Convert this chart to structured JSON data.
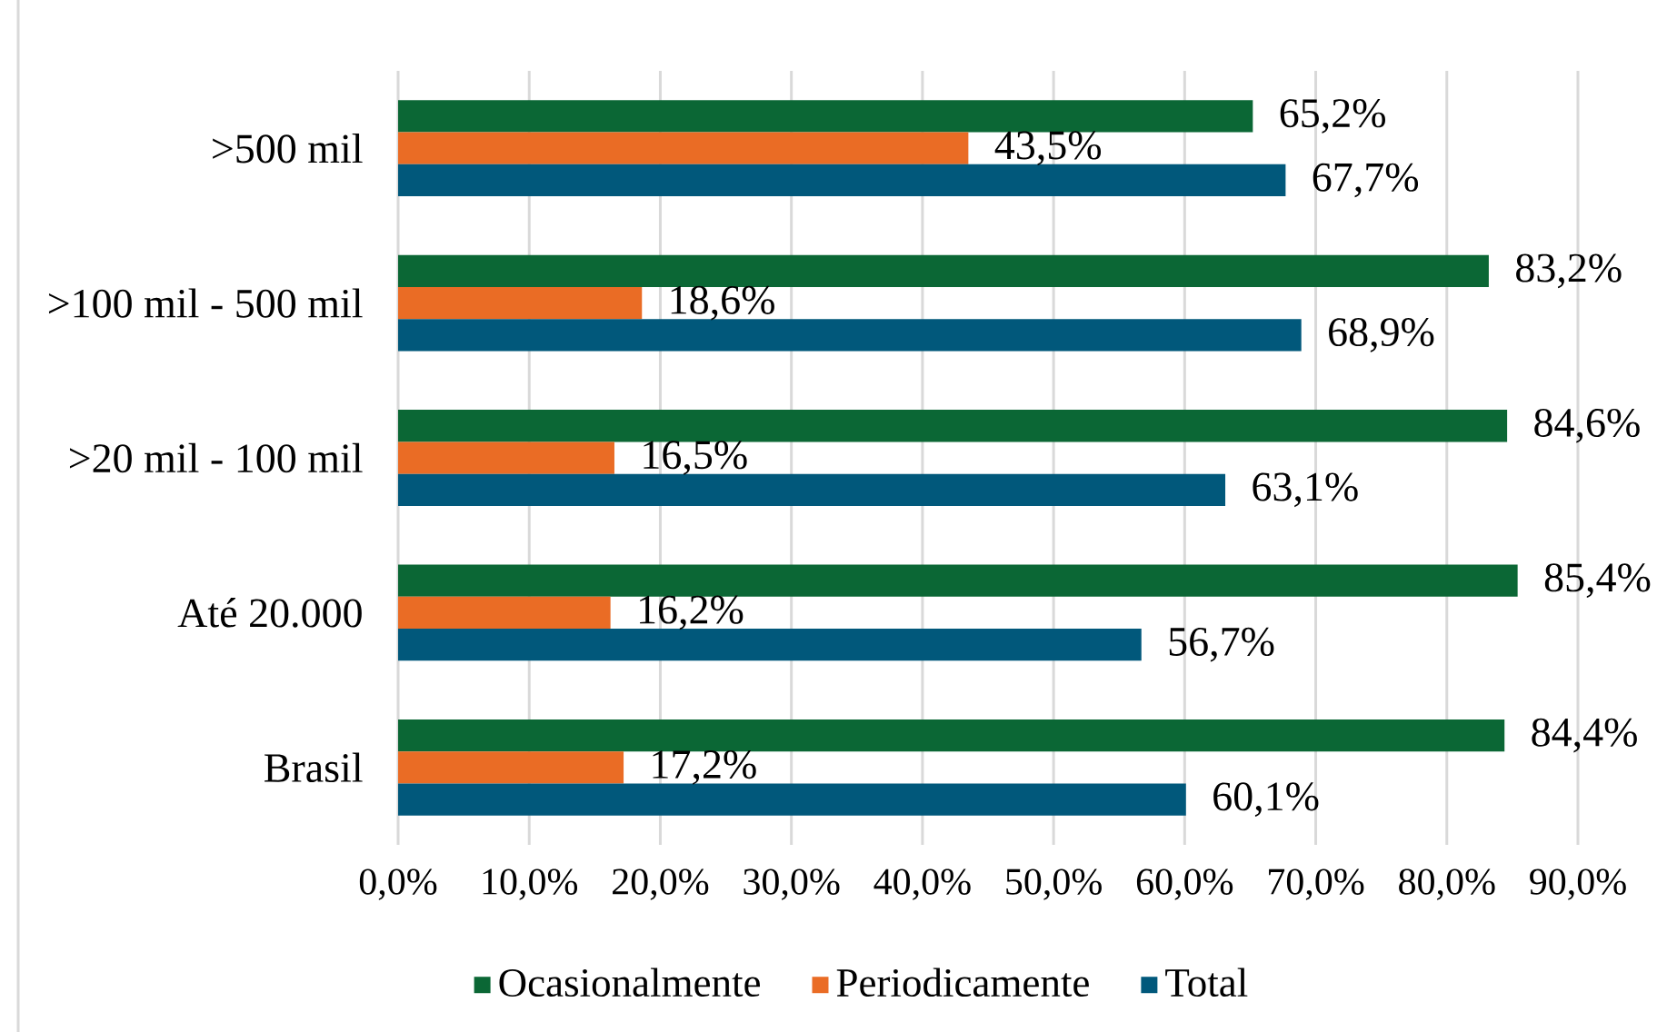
{
  "chart_data": {
    "type": "bar",
    "orientation": "horizontal",
    "categories": [
      ">500 mil",
      ">100 mil - 500 mil",
      ">20 mil - 100 mil",
      "Até 20.000",
      "Brasil"
    ],
    "series": [
      {
        "name": "Ocasionalmente",
        "color": "#0b6735",
        "values": [
          65.2,
          83.2,
          84.6,
          85.4,
          84.4
        ],
        "value_labels": [
          "65,2%",
          "83,2%",
          "84,6%",
          "85,4%",
          "84,4%"
        ]
      },
      {
        "name": "Periodicamente",
        "color": "#ea6c25",
        "values": [
          43.5,
          18.6,
          16.5,
          16.2,
          17.2
        ],
        "value_labels": [
          "43,5%",
          "18,6%",
          "16,5%",
          "16,2%",
          "17,2%"
        ]
      },
      {
        "name": "Total",
        "color": "#01587b",
        "values": [
          67.7,
          68.9,
          63.1,
          56.7,
          60.1
        ],
        "value_labels": [
          "67,7%",
          "68,9%",
          "63,1%",
          "56,7%",
          "60,1%"
        ]
      }
    ],
    "xlim": [
      0,
      90
    ],
    "xticks": [
      {
        "value": 0,
        "label": "0,0%"
      },
      {
        "value": 10,
        "label": "10,0%"
      },
      {
        "value": 20,
        "label": "20,0%"
      },
      {
        "value": 30,
        "label": "30,0%"
      },
      {
        "value": 40,
        "label": "40,0%"
      },
      {
        "value": 50,
        "label": "50,0%"
      },
      {
        "value": 60,
        "label": "60,0%"
      },
      {
        "value": 70,
        "label": "70,0%"
      },
      {
        "value": 80,
        "label": "80,0%"
      },
      {
        "value": 90,
        "label": "90,0%"
      }
    ],
    "grid": "x",
    "legend": "bottom"
  }
}
